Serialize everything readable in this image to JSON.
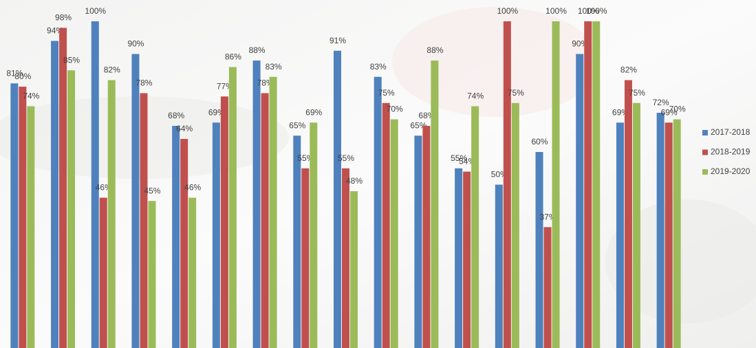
{
  "chart_data": {
    "type": "bar",
    "categories": [
      null,
      null,
      null,
      null,
      null,
      null,
      null,
      null,
      null,
      null,
      null,
      null,
      null,
      null,
      null,
      null,
      null
    ],
    "series": [
      {
        "name": "2017-2018",
        "color": "#4f81bd",
        "values": [
          81,
          94,
          100,
          90,
          68,
          69,
          88,
          65,
          91,
          83,
          65,
          55,
          50,
          60,
          90,
          69,
          72
        ],
        "value_labels": [
          "81%",
          "94%",
          "100%",
          "90%",
          "68%",
          "69%",
          "88%",
          "65%",
          "91%",
          "83%",
          "65%",
          "55%",
          "50%",
          "60%",
          "90%",
          "69%",
          "72%"
        ]
      },
      {
        "name": "2018-2019",
        "color": "#c0504d",
        "values": [
          80,
          98,
          46,
          78,
          64,
          77,
          78,
          55,
          55,
          75,
          68,
          54,
          100,
          37,
          100,
          82,
          69
        ],
        "value_labels": [
          "80%",
          "98%",
          "46%",
          "78%",
          "64%",
          "77%",
          "78%",
          "55%",
          "55%",
          "75%",
          "68%",
          "54%",
          "100%",
          "37%",
          "100%",
          "82%",
          "69%"
        ]
      },
      {
        "name": "2019-2020",
        "color": "#9bbb59",
        "values": [
          74,
          85,
          82,
          45,
          46,
          86,
          83,
          69,
          48,
          70,
          88,
          74,
          75,
          100,
          100,
          75,
          70
        ],
        "value_labels": [
          "74%",
          "85%",
          "82%",
          "45%",
          "46%",
          "86%",
          "83%",
          "69%",
          "48%",
          "70%",
          "88%",
          "74%",
          "75%",
          "100%",
          "100%",
          "75%",
          "70%"
        ]
      }
    ],
    "ylim": [
      0,
      100
    ],
    "legend": "right"
  }
}
